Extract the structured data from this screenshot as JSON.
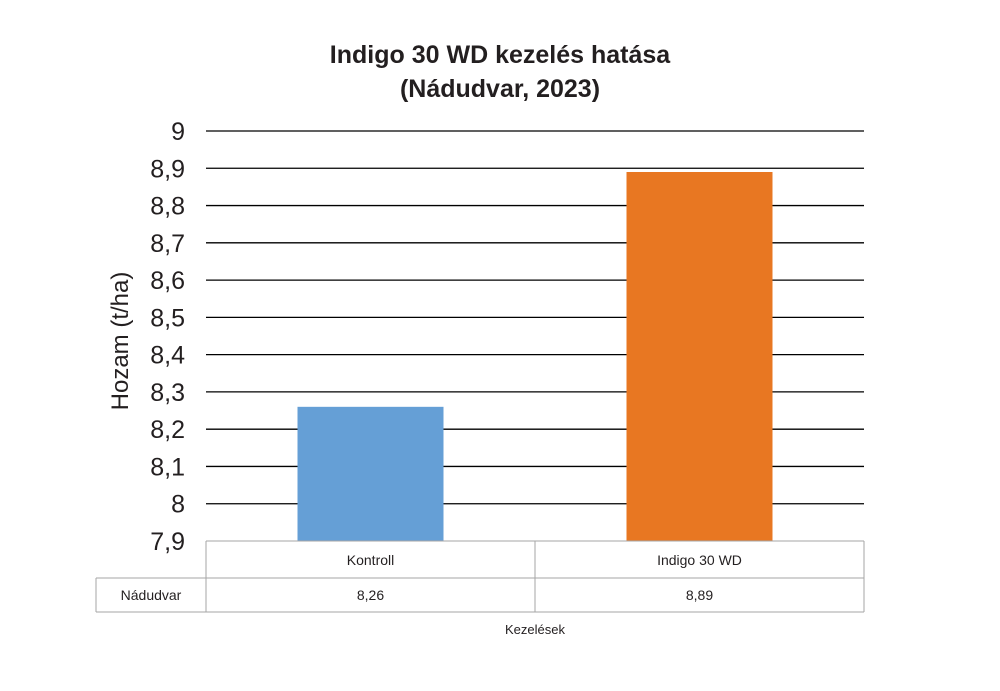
{
  "chart_data": {
    "type": "bar",
    "title": "Indigo 30 WD kezelés hatása",
    "subtitle": "(Nádudvar, 2023)",
    "ylabel": "Hozam (t/ha)",
    "xlabel": "Kezelések",
    "ylim": [
      7.9,
      9.0
    ],
    "yticks": [
      7.9,
      8.0,
      8.1,
      8.2,
      8.3,
      8.4,
      8.5,
      8.6,
      8.7,
      8.8,
      8.9,
      9.0
    ],
    "ytick_labels": [
      "7,9",
      "8",
      "8,1",
      "8,2",
      "8,3",
      "8,4",
      "8,5",
      "8,6",
      "8,7",
      "8,8",
      "8,9",
      "9"
    ],
    "categories": [
      "Kontroll",
      "Indigo 30 WD"
    ],
    "series": [
      {
        "name": "Nádudvar",
        "values": [
          8.26,
          8.89
        ],
        "value_labels": [
          "8,26",
          "8,89"
        ]
      }
    ],
    "bar_colors": [
      "#659fd6",
      "#e87722"
    ],
    "grid": true,
    "legend": "data-table"
  }
}
